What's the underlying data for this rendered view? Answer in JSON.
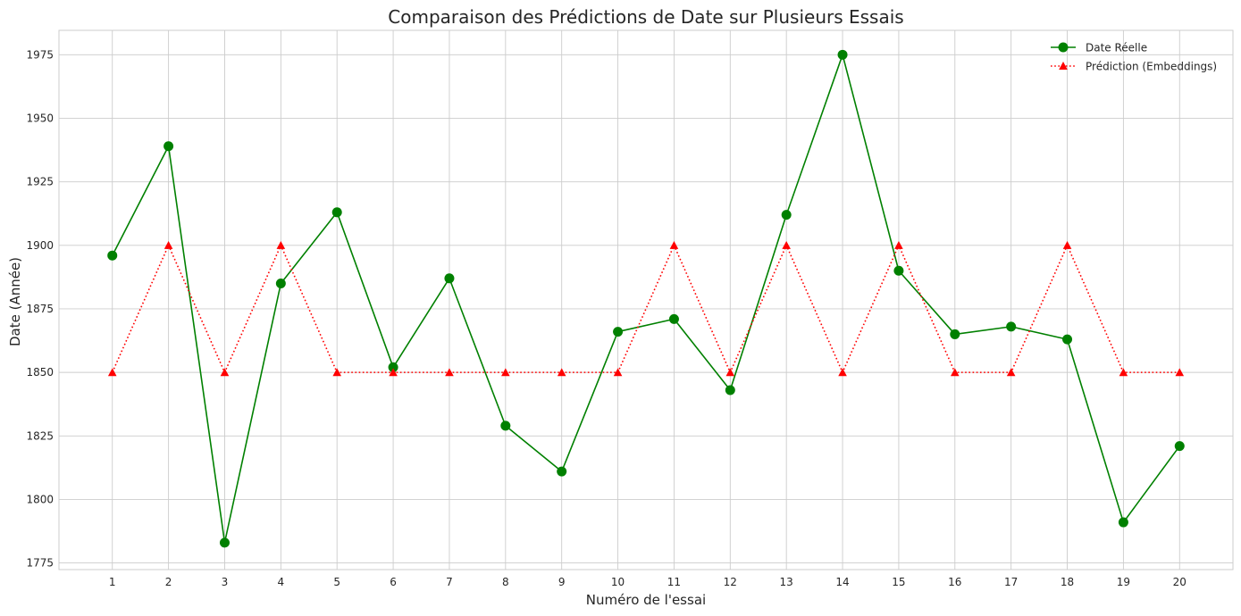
{
  "chart_data": {
    "type": "line",
    "title": "Comparaison des Prédictions de Date sur Plusieurs Essais",
    "xlabel": "Numéro de l'essai",
    "ylabel": "Date (Année)",
    "x": [
      1,
      2,
      3,
      4,
      5,
      6,
      7,
      8,
      9,
      10,
      11,
      12,
      13,
      14,
      15,
      16,
      17,
      18,
      19,
      20
    ],
    "xlim": [
      0.05,
      20.95
    ],
    "ylim": [
      1772.4,
      1984.6
    ],
    "yticks": [
      1775,
      1800,
      1825,
      1850,
      1875,
      1900,
      1925,
      1950,
      1975
    ],
    "grid": true,
    "legend_position": "top-right",
    "series": [
      {
        "name": "Date Réelle",
        "color": "#008000",
        "marker": "circle",
        "linestyle": "solid",
        "values": [
          1896,
          1939,
          1783,
          1885,
          1913,
          1852,
          1887,
          1829,
          1811,
          1866,
          1871,
          1843,
          1912,
          1975,
          1890,
          1865,
          1868,
          1863,
          1791,
          1821
        ]
      },
      {
        "name": "Prédiction (Embeddings)",
        "color": "#ff0000",
        "marker": "triangle",
        "linestyle": "dotted",
        "values": [
          1850,
          1900,
          1850,
          1900,
          1850,
          1850,
          1850,
          1850,
          1850,
          1850,
          1900,
          1850,
          1900,
          1850,
          1900,
          1850,
          1850,
          1900,
          1850,
          1850
        ]
      }
    ]
  }
}
